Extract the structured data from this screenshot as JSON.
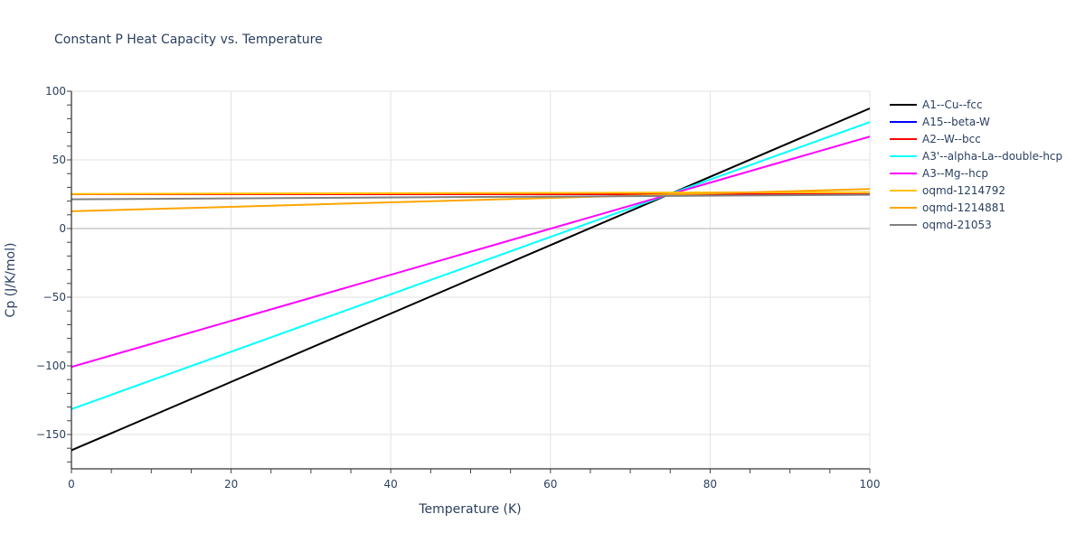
{
  "chart_data": {
    "type": "line",
    "title": "Constant P Heat Capacity vs. Temperature",
    "xlabel": "Temperature (K)",
    "ylabel": "Cp (J/K/mol)",
    "xlim": [
      0,
      100
    ],
    "ylim": [
      -175,
      100
    ],
    "xticks": [
      0,
      20,
      40,
      60,
      80,
      100
    ],
    "yticks": [
      -150,
      -100,
      -50,
      0,
      50,
      100
    ],
    "xtick_labels": [
      "0",
      "20",
      "40",
      "60",
      "80",
      "100"
    ],
    "ytick_labels": [
      "−150",
      "−100",
      "−50",
      "0",
      "50",
      "100"
    ],
    "grid": true,
    "legend_position": "right",
    "x": [
      0,
      100
    ],
    "series": [
      {
        "name": "A1--Cu--fcc",
        "color": "#000000",
        "values": [
          -161.5,
          87.5
        ]
      },
      {
        "name": "A15--beta-W",
        "color": "#0000ff",
        "values": [
          25.0,
          25.0
        ]
      },
      {
        "name": "A2--W--bcc",
        "color": "#ff0000",
        "values": [
          25.0,
          25.0
        ]
      },
      {
        "name": "A3'--alpha-La--double-hcp",
        "color": "#00ffff",
        "values": [
          -131.5,
          77.5
        ]
      },
      {
        "name": "A3--Mg--hcp",
        "color": "#ff00ff",
        "values": [
          -100.8,
          67.0
        ]
      },
      {
        "name": "oqmd-1214792",
        "color": "#ffc000",
        "values": [
          25.2,
          26.5
        ]
      },
      {
        "name": "oqmd-1214881",
        "color": "#ffa500",
        "values": [
          12.6,
          28.8
        ]
      },
      {
        "name": "oqmd-21053",
        "color": "#808080",
        "values": [
          21.3,
          24.6
        ]
      }
    ]
  },
  "legend": {
    "items": [
      {
        "label": "A1--Cu--fcc",
        "color": "#000000"
      },
      {
        "label": "A15--beta-W",
        "color": "#0000ff"
      },
      {
        "label": "A2--W--bcc",
        "color": "#ff0000"
      },
      {
        "label": "A3'--alpha-La--double-hcp",
        "color": "#00ffff"
      },
      {
        "label": "A3--Mg--hcp",
        "color": "#ff00ff"
      },
      {
        "label": "oqmd-1214792",
        "color": "#ffc000"
      },
      {
        "label": "oqmd-1214881",
        "color": "#ffa500"
      },
      {
        "label": "oqmd-21053",
        "color": "#808080"
      }
    ]
  }
}
